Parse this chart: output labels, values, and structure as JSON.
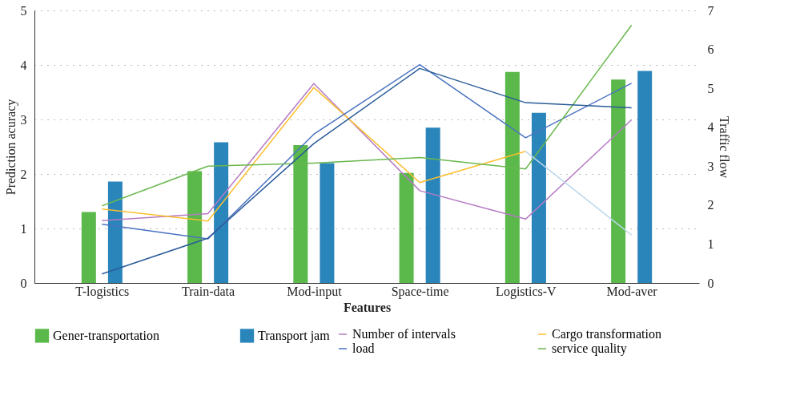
{
  "chart_data": {
    "type": "bar",
    "xlabel": "Features",
    "ylabel": "Prediction acuracy",
    "y2label": "Traffic flow",
    "categories": [
      "T-logistics",
      "Train-data",
      "Mod-input",
      "Space-time",
      "Logistics-V",
      "Mod-aver"
    ],
    "series": [
      {
        "name": "Gener-transportation",
        "color": "#5bb84a",
        "values": [
          1.3,
          2.05,
          2.53,
          2.02,
          3.87,
          3.73
        ]
      },
      {
        "name": "Transport jam",
        "color": "#2a85bb",
        "values": [
          1.86,
          2.58,
          2.2,
          2.85,
          3.12,
          3.89
        ]
      },
      {
        "name": "Number of intervals",
        "type": "line",
        "axis": "y2",
        "color": "#b57bc4",
        "values": [
          1.6,
          1.78,
          5.12,
          2.37,
          1.64,
          4.19
        ]
      },
      {
        "name": "Cargo transformation",
        "type": "line",
        "axis": "y2",
        "color": "#fbbf2f",
        "values": [
          1.9,
          1.59,
          5.02,
          2.58,
          3.38,
          null
        ]
      },
      {
        "name": "load",
        "type": "line",
        "axis": "y2",
        "color": "#4a72c0",
        "values": [
          1.51,
          1.13,
          3.82,
          5.61,
          3.73,
          5.13
        ]
      },
      {
        "name": "service quality",
        "type": "line",
        "axis": "y2",
        "color": "#6ab84e",
        "values": [
          1.98,
          3.0,
          3.08,
          3.22,
          2.93,
          6.62
        ]
      },
      {
        "type": "line",
        "axis": "y2",
        "color": "#2a5c98",
        "values": [
          0.23,
          1.15,
          3.58,
          5.51,
          4.63,
          4.5
        ]
      },
      {
        "type": "line",
        "axis": "y2",
        "color": "#b9d7ec",
        "values": [
          null,
          null,
          null,
          null,
          3.38,
          1.23
        ]
      }
    ],
    "ylim": [
      0,
      5
    ],
    "yticks": [
      0,
      1,
      2,
      3,
      4,
      5
    ],
    "y2lim": [
      0,
      7
    ],
    "y2ticks": [
      0,
      1,
      2,
      3,
      4,
      5,
      6,
      7
    ],
    "grid": "y",
    "legend": "bottom"
  }
}
